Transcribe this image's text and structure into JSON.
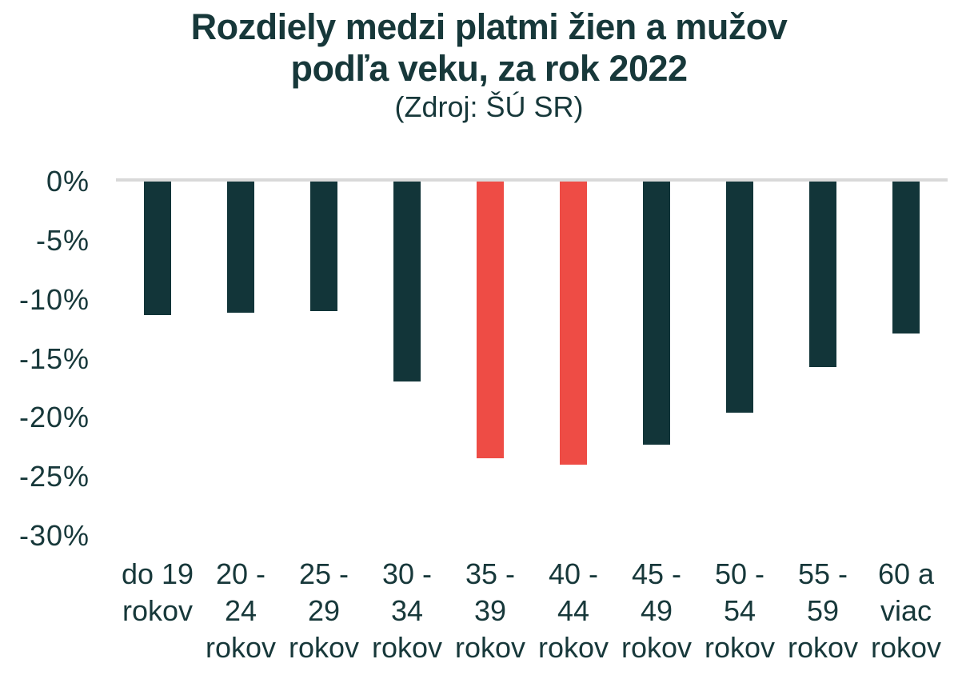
{
  "title": {
    "line1": "Rozdiely medzi platmi žien a mužov",
    "line2": "podľa veku, za rok 2022",
    "subtitle": "(Zdroj: ŠÚ SR)"
  },
  "colors": {
    "text": "#17383a",
    "bar_dark": "#123539",
    "bar_highlight": "#ee4c45",
    "zero_line": "#d9d9d9",
    "background": "#ffffff"
  },
  "chart_data": {
    "type": "bar",
    "title": "Rozdiely medzi platmi žien a mužov podľa veku, za rok 2022",
    "subtitle": "(Zdroj: ŠÚ SR)",
    "xlabel": "",
    "ylabel": "",
    "ylim": [
      -30,
      0
    ],
    "grid": false,
    "legend": "none",
    "categories": [
      "do 19 rokov",
      "20 - 24 rokov",
      "25 - 29 rokov",
      "30 - 34 rokov",
      "35 - 39 rokov",
      "40 - 44 rokov",
      "45 - 49 rokov",
      "50 - 54 rokov",
      "55 - 59 rokov",
      "60 a viac rokov"
    ],
    "category_lines": [
      [
        "do 19",
        "rokov"
      ],
      [
        "20 -",
        "24",
        "rokov"
      ],
      [
        "25 -",
        "29",
        "rokov"
      ],
      [
        "30 -",
        "34",
        "rokov"
      ],
      [
        "35 -",
        "39",
        "rokov"
      ],
      [
        "40 -",
        "44",
        "rokov"
      ],
      [
        "45 -",
        "49",
        "rokov"
      ],
      [
        "50 -",
        "54",
        "rokov"
      ],
      [
        "55 -",
        "59",
        "rokov"
      ],
      [
        "60 a",
        "viac",
        "rokov"
      ]
    ],
    "values": [
      -11.3,
      -11.1,
      -11.0,
      -16.9,
      -23.4,
      -24.0,
      -22.3,
      -19.6,
      -15.7,
      -12.9
    ],
    "bar_colors": [
      "#123539",
      "#123539",
      "#123539",
      "#123539",
      "#ee4c45",
      "#ee4c45",
      "#123539",
      "#123539",
      "#123539",
      "#123539"
    ],
    "yticks": [
      "0%",
      "-5%",
      "-10%",
      "-15%",
      "-20%",
      "-25%",
      "-30%"
    ],
    "ytick_values": [
      0,
      -5,
      -10,
      -15,
      -20,
      -25,
      -30
    ]
  }
}
